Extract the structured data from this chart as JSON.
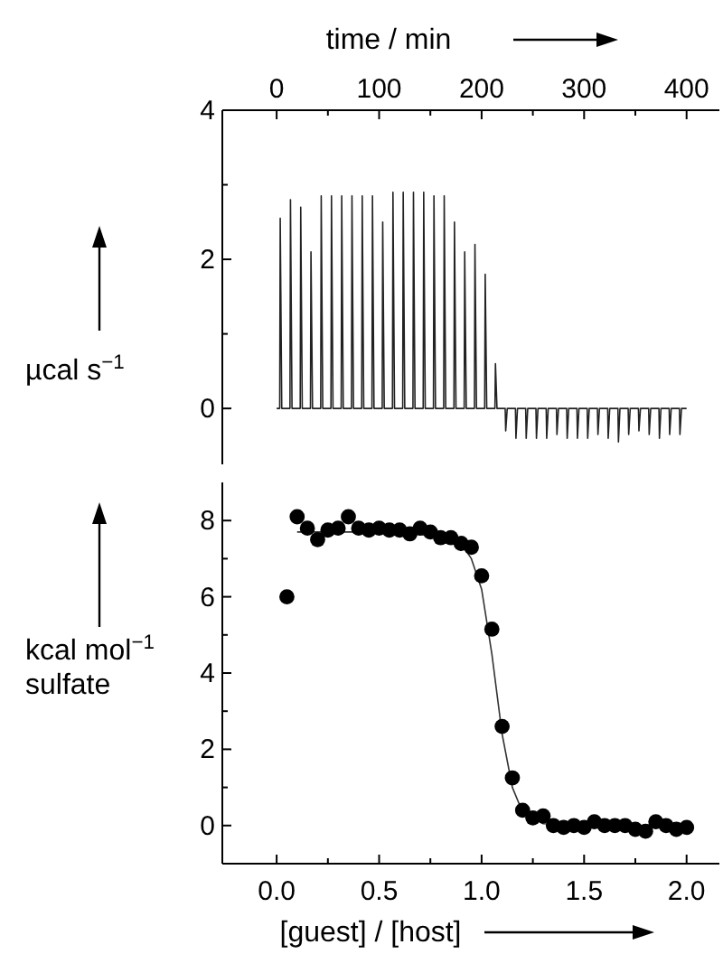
{
  "chart_data": [
    {
      "type": "line",
      "xlabel": "time / min",
      "ylabel": "µcal s$^{−1}$",
      "xlim": [
        -53,
        432
      ],
      "ylim": [
        -0.75,
        4
      ],
      "xticks": [
        0,
        {
          "value": 50,
          "label": null
        },
        100,
        {
          "value": 150,
          "label": null
        },
        200,
        {
          "value": 250,
          "label": null
        },
        300,
        {
          "value": 350,
          "label": null
        },
        400
      ],
      "yticks": [
        0,
        {
          "value": 1,
          "label": null
        },
        2,
        {
          "value": 3,
          "label": null
        },
        4
      ],
      "series": [
        {
          "color": "#222222",
          "x": [
            0,
            3,
            3.5,
            5,
            13,
            13.5,
            15,
            23,
            23.5,
            25,
            33,
            33.5,
            35,
            43,
            43.5,
            45,
            53,
            53.5,
            55,
            63,
            63.5,
            65,
            73,
            73.5,
            75,
            83,
            83.5,
            85,
            93,
            93.5,
            95,
            103,
            103.5,
            105,
            113,
            113.5,
            115,
            123,
            123.5,
            125,
            133,
            133.5,
            135,
            143,
            143.5,
            145,
            153,
            153.5,
            155,
            163,
            163.5,
            165,
            173,
            173.5,
            175,
            183,
            183.5,
            185,
            193,
            193.5,
            195,
            203,
            203.5,
            205,
            213,
            213.5,
            215,
            223,
            223.5,
            225,
            233,
            233.5,
            235,
            243,
            243.5,
            245,
            253,
            253.5,
            255,
            263,
            263.5,
            265,
            273,
            273.5,
            275,
            283,
            283.5,
            285,
            293,
            293.5,
            295,
            303,
            303.5,
            305,
            313,
            313.5,
            315,
            323,
            323.5,
            325,
            333,
            333.5,
            335,
            343,
            343.5,
            345,
            353,
            353.5,
            355,
            363,
            363.5,
            365,
            373,
            373.5,
            375,
            383,
            383.5,
            385,
            393,
            393.5,
            395,
            400
          ],
          "values": [
            0,
            0,
            2.55,
            0,
            0,
            2.8,
            0,
            0,
            2.7,
            0,
            0,
            2.1,
            0,
            0,
            2.85,
            0,
            0,
            2.85,
            0,
            0,
            2.85,
            0,
            0,
            2.85,
            0,
            0,
            2.85,
            0,
            0,
            2.85,
            0,
            0,
            2.5,
            0,
            0,
            2.9,
            0,
            0,
            2.9,
            0,
            0,
            2.9,
            0,
            0,
            2.9,
            0,
            0,
            2.85,
            0,
            0,
            2.85,
            0,
            0,
            2.5,
            0,
            0,
            2.1,
            0,
            0,
            2.2,
            0,
            0,
            1.8,
            0,
            0,
            0.6,
            0,
            0,
            -0.3,
            0,
            0,
            -0.4,
            0,
            0,
            -0.4,
            0,
            0,
            -0.4,
            0,
            0,
            -0.4,
            0,
            0,
            -0.35,
            0,
            0,
            -0.4,
            0,
            0,
            -0.4,
            0,
            0,
            -0.4,
            0,
            0,
            -0.35,
            0,
            0,
            -0.4,
            0,
            0,
            -0.45,
            0,
            0,
            -0.35,
            0,
            0,
            -0.3,
            0,
            0,
            -0.35,
            0,
            0,
            -0.4,
            0,
            0,
            -0.35,
            0,
            0,
            -0.35,
            0,
            0
          ]
        }
      ]
    },
    {
      "type": "scatter",
      "xlabel": "[guest] / [host]",
      "ylabel": "kcal mol$^{−1}$\nsulfate",
      "xlim": [
        -0.265,
        2.16
      ],
      "ylim": [
        -1,
        9
      ],
      "xticks": [
        {
          "value": 0,
          "label": "0.0"
        },
        {
          "value": 0.25,
          "label": null
        },
        {
          "value": 0.5,
          "label": "0.5"
        },
        {
          "value": 0.75,
          "label": null
        },
        {
          "value": 1,
          "label": "1.0"
        },
        {
          "value": 1.25,
          "label": null
        },
        {
          "value": 1.5,
          "label": "1.5"
        },
        {
          "value": 1.75,
          "label": null
        },
        {
          "value": 2,
          "label": "2.0"
        }
      ],
      "yticks": [
        0,
        {
          "value": 1,
          "label": null
        },
        2,
        {
          "value": 3,
          "label": null
        },
        4,
        {
          "value": 5,
          "label": null
        },
        6,
        {
          "value": 7,
          "label": null
        },
        8
      ],
      "series": [
        {
          "type": "line",
          "color": "#333333",
          "x": [
            0.1,
            0.5,
            0.8,
            0.9,
            0.95,
            1.0,
            1.05,
            1.1,
            1.15,
            1.2,
            1.3,
            1.5,
            2.0
          ],
          "values": [
            7.7,
            7.7,
            7.6,
            7.4,
            7.0,
            6.2,
            4.5,
            2.4,
            1.0,
            0.35,
            0.05,
            0,
            0
          ]
        },
        {
          "marker": "circle",
          "color": "#000000",
          "x": [
            0.05,
            0.1,
            0.15,
            0.2,
            0.25,
            0.3,
            0.35,
            0.4,
            0.45,
            0.5,
            0.55,
            0.6,
            0.65,
            0.7,
            0.75,
            0.8,
            0.85,
            0.9,
            0.95,
            1.0,
            1.05,
            1.1,
            1.15,
            1.2,
            1.25,
            1.3,
            1.35,
            1.4,
            1.45,
            1.5,
            1.55,
            1.6,
            1.65,
            1.7,
            1.75,
            1.8,
            1.85,
            1.9,
            1.95,
            2.0
          ],
          "values": [
            6.0,
            8.1,
            7.8,
            7.5,
            7.75,
            7.8,
            8.1,
            7.8,
            7.75,
            7.8,
            7.75,
            7.75,
            7.65,
            7.8,
            7.7,
            7.55,
            7.55,
            7.4,
            7.3,
            6.55,
            5.15,
            2.6,
            1.25,
            0.4,
            0.2,
            0.25,
            0.0,
            -0.05,
            0.0,
            -0.05,
            0.1,
            0.0,
            0.0,
            0.0,
            -0.1,
            -0.15,
            0.1,
            0.0,
            -0.1,
            -0.05
          ]
        }
      ]
    }
  ]
}
